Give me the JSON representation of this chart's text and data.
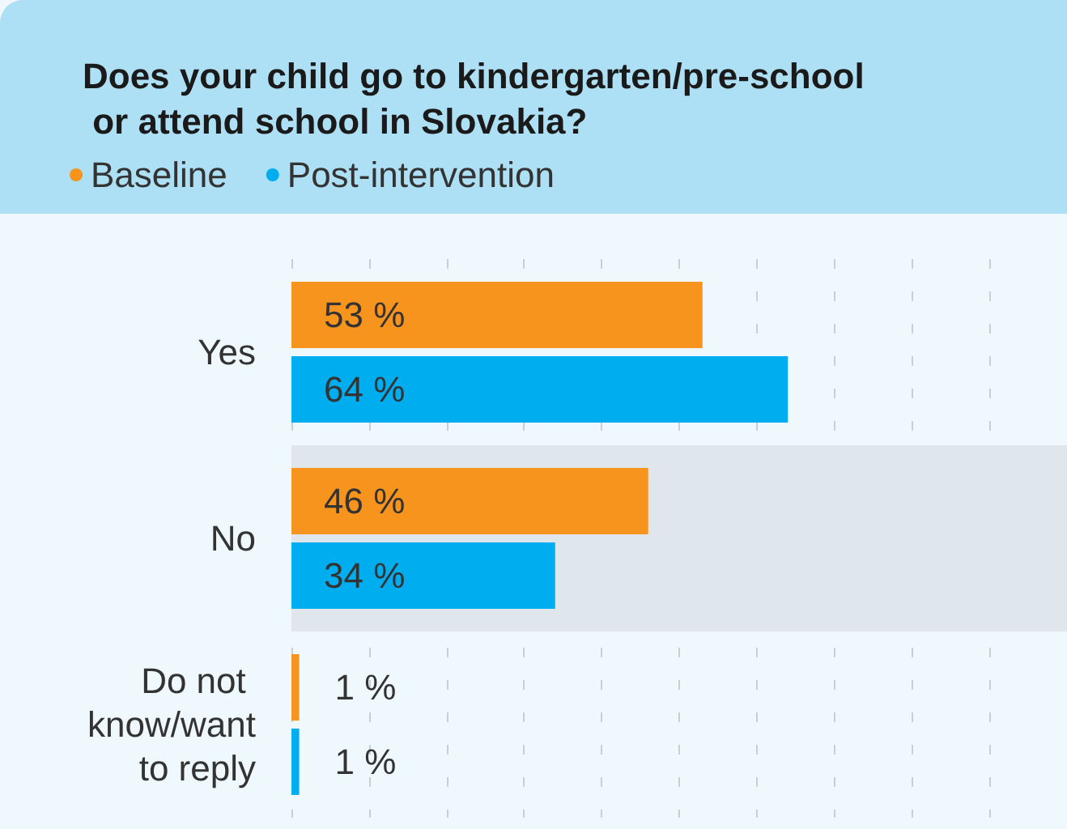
{
  "chart_data": {
    "type": "bar",
    "orientation": "horizontal",
    "title": "Does your child go to kindergarten/pre-school or attend school in Slovakia?",
    "categories": [
      "Yes",
      "No",
      "Do not know/want to reply"
    ],
    "series": [
      {
        "name": "Baseline",
        "color": "#f7941d",
        "values": [
          53,
          46,
          1
        ],
        "value_labels": [
          "53 %",
          "46 %",
          "1 %"
        ]
      },
      {
        "name": "Post-intervention",
        "color": "#00aeef",
        "values": [
          64,
          34,
          1
        ],
        "value_labels": [
          "64 %",
          "34 %",
          "1 %"
        ]
      }
    ],
    "xlim": [
      0,
      100
    ],
    "xticks": [
      {
        "value": 0,
        "label": null
      },
      {
        "value": 10,
        "label": null
      },
      {
        "value": 20,
        "label": null
      },
      {
        "value": 30,
        "label": null
      },
      {
        "value": 40,
        "label": null
      },
      {
        "value": 50,
        "label": null
      },
      {
        "value": 60,
        "label": null
      },
      {
        "value": 70,
        "label": null
      },
      {
        "value": 80,
        "label": null
      },
      {
        "value": 90,
        "label": null
      }
    ],
    "bands": [
      {
        "axis": "y",
        "from": "No",
        "to": "No",
        "color": "#dfe6ec"
      }
    ],
    "grid": "x",
    "legend": "top left",
    "tick_labels": "y"
  }
}
